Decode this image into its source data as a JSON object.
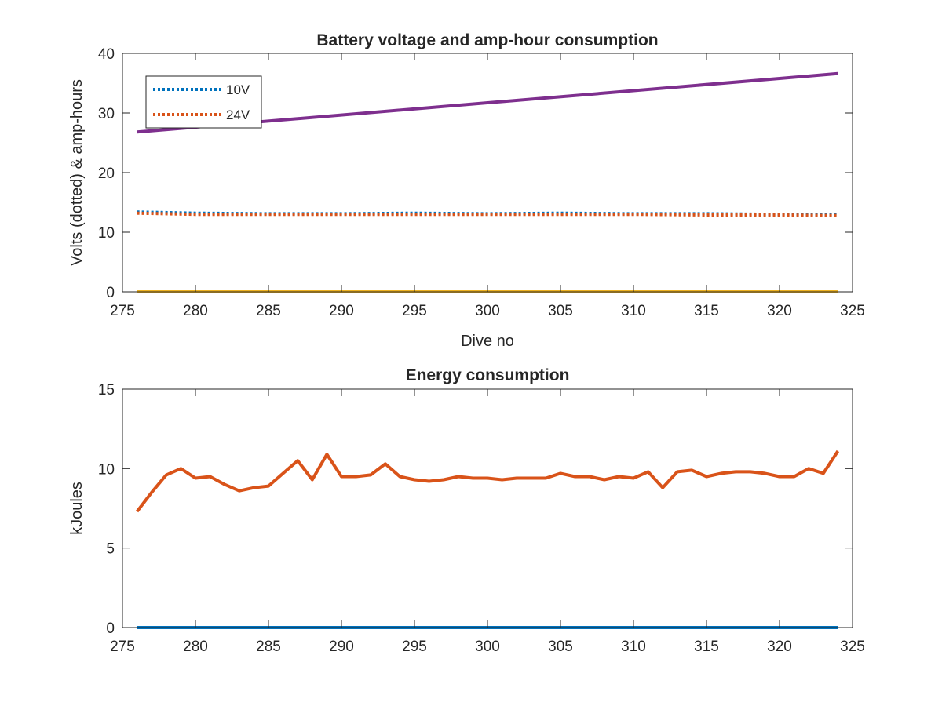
{
  "chart_data": [
    {
      "type": "line",
      "title": "Battery voltage and amp-hour consumption",
      "xlabel": "Dive no",
      "ylabel": "Volts (dotted) & amp-hours",
      "xlim": [
        275,
        325
      ],
      "ylim": [
        0,
        40
      ],
      "xticks": [
        "275",
        "280",
        "285",
        "290",
        "295",
        "300",
        "305",
        "310",
        "315",
        "320",
        "325"
      ],
      "yticks": [
        "0",
        "10",
        "20",
        "30",
        "40"
      ],
      "grid": false,
      "legend_position": "top-left",
      "series": [
        {
          "name": "10V",
          "style": "dotted",
          "color": "#0072BD",
          "x": [
            276,
            280,
            285,
            290,
            295,
            300,
            305,
            310,
            315,
            320,
            324
          ],
          "y": [
            13.4,
            13.2,
            13.1,
            13.1,
            13.2,
            13.1,
            13.2,
            13.1,
            13.1,
            13.0,
            12.9
          ]
        },
        {
          "name": "24V",
          "style": "dotted",
          "color": "#D95319",
          "x": [
            276,
            280,
            285,
            290,
            295,
            300,
            305,
            310,
            315,
            320,
            324
          ],
          "y": [
            13.2,
            13.0,
            13.0,
            13.0,
            13.0,
            13.0,
            13.0,
            13.0,
            12.9,
            12.9,
            12.8
          ]
        },
        {
          "style": "solid",
          "color": "#7E2F8E",
          "x": [
            276,
            324
          ],
          "y": [
            26.8,
            36.6
          ]
        },
        {
          "style": "solid",
          "color": "#EDB120",
          "x": [
            276,
            324
          ],
          "y": [
            0,
            0
          ]
        }
      ]
    },
    {
      "type": "line",
      "title": "Energy consumption",
      "xlabel": "",
      "ylabel": "kJoules",
      "xlim": [
        275,
        325
      ],
      "ylim": [
        0,
        15
      ],
      "xticks": [
        "275",
        "280",
        "285",
        "290",
        "295",
        "300",
        "305",
        "310",
        "315",
        "320",
        "325"
      ],
      "yticks": [
        "0",
        "5",
        "10",
        "15"
      ],
      "grid": false,
      "series": [
        {
          "style": "solid",
          "color": "#D95319",
          "x": [
            276,
            277,
            278,
            279,
            280,
            281,
            282,
            283,
            284,
            285,
            286,
            287,
            288,
            289,
            290,
            291,
            292,
            293,
            294,
            295,
            296,
            297,
            298,
            299,
            300,
            301,
            302,
            303,
            304,
            305,
            306,
            307,
            308,
            309,
            310,
            311,
            312,
            313,
            314,
            315,
            316,
            317,
            318,
            319,
            320,
            321,
            322,
            323,
            324
          ],
          "y": [
            7.3,
            8.5,
            9.6,
            10.0,
            9.4,
            9.5,
            9.0,
            8.6,
            8.8,
            8.9,
            9.7,
            10.5,
            9.3,
            10.9,
            9.5,
            9.5,
            9.6,
            10.3,
            9.5,
            9.3,
            9.2,
            9.3,
            9.5,
            9.4,
            9.4,
            9.3,
            9.4,
            9.4,
            9.4,
            9.7,
            9.5,
            9.5,
            9.3,
            9.5,
            9.4,
            9.8,
            8.8,
            9.8,
            9.9,
            9.5,
            9.7,
            9.8,
            9.8,
            9.7,
            9.5,
            9.5,
            10.0,
            9.7,
            11.1
          ]
        },
        {
          "style": "solid",
          "color": "#0072BD",
          "x": [
            276,
            324
          ],
          "y": [
            0,
            0
          ]
        }
      ]
    }
  ]
}
